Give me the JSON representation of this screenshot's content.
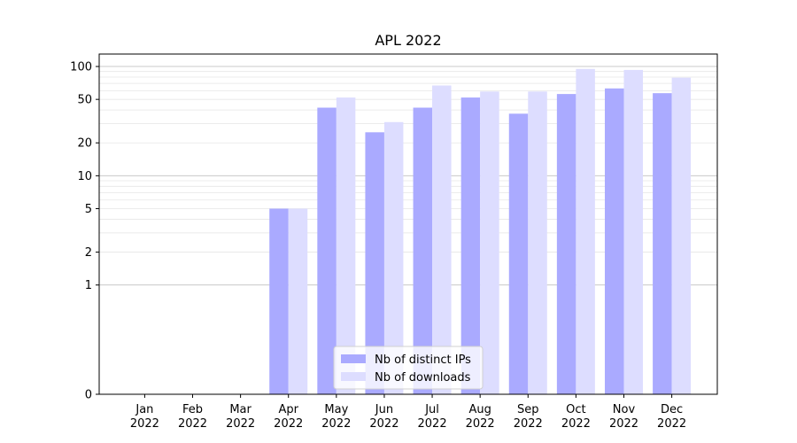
{
  "chart_data": {
    "type": "bar",
    "title": "APL 2022",
    "xlabel": "",
    "ylabel": "",
    "yscale": "symlog",
    "ylim": [
      0,
      130
    ],
    "yticks": [
      0,
      1,
      2,
      5,
      10,
      20,
      50,
      100
    ],
    "ytick_labels": [
      "0",
      "1",
      "2",
      "5",
      "10",
      "20",
      "50",
      "100"
    ],
    "grid": true,
    "legend_position": "bottom-center",
    "categories": [
      {
        "month": "Jan",
        "year": "2022"
      },
      {
        "month": "Feb",
        "year": "2022"
      },
      {
        "month": "Mar",
        "year": "2022"
      },
      {
        "month": "Apr",
        "year": "2022"
      },
      {
        "month": "May",
        "year": "2022"
      },
      {
        "month": "Jun",
        "year": "2022"
      },
      {
        "month": "Jul",
        "year": "2022"
      },
      {
        "month": "Aug",
        "year": "2022"
      },
      {
        "month": "Sep",
        "year": "2022"
      },
      {
        "month": "Oct",
        "year": "2022"
      },
      {
        "month": "Nov",
        "year": "2022"
      },
      {
        "month": "Dec",
        "year": "2022"
      }
    ],
    "series": [
      {
        "name": "Nb of distinct IPs",
        "color": "#aaaaff",
        "values": [
          0,
          0,
          0,
          5,
          42,
          25,
          42,
          52,
          37,
          56,
          63,
          57
        ]
      },
      {
        "name": "Nb of downloads",
        "color": "#ddddff",
        "values": [
          0,
          0,
          0,
          5,
          52,
          31,
          67,
          59,
          59,
          95,
          93,
          79
        ]
      }
    ]
  }
}
